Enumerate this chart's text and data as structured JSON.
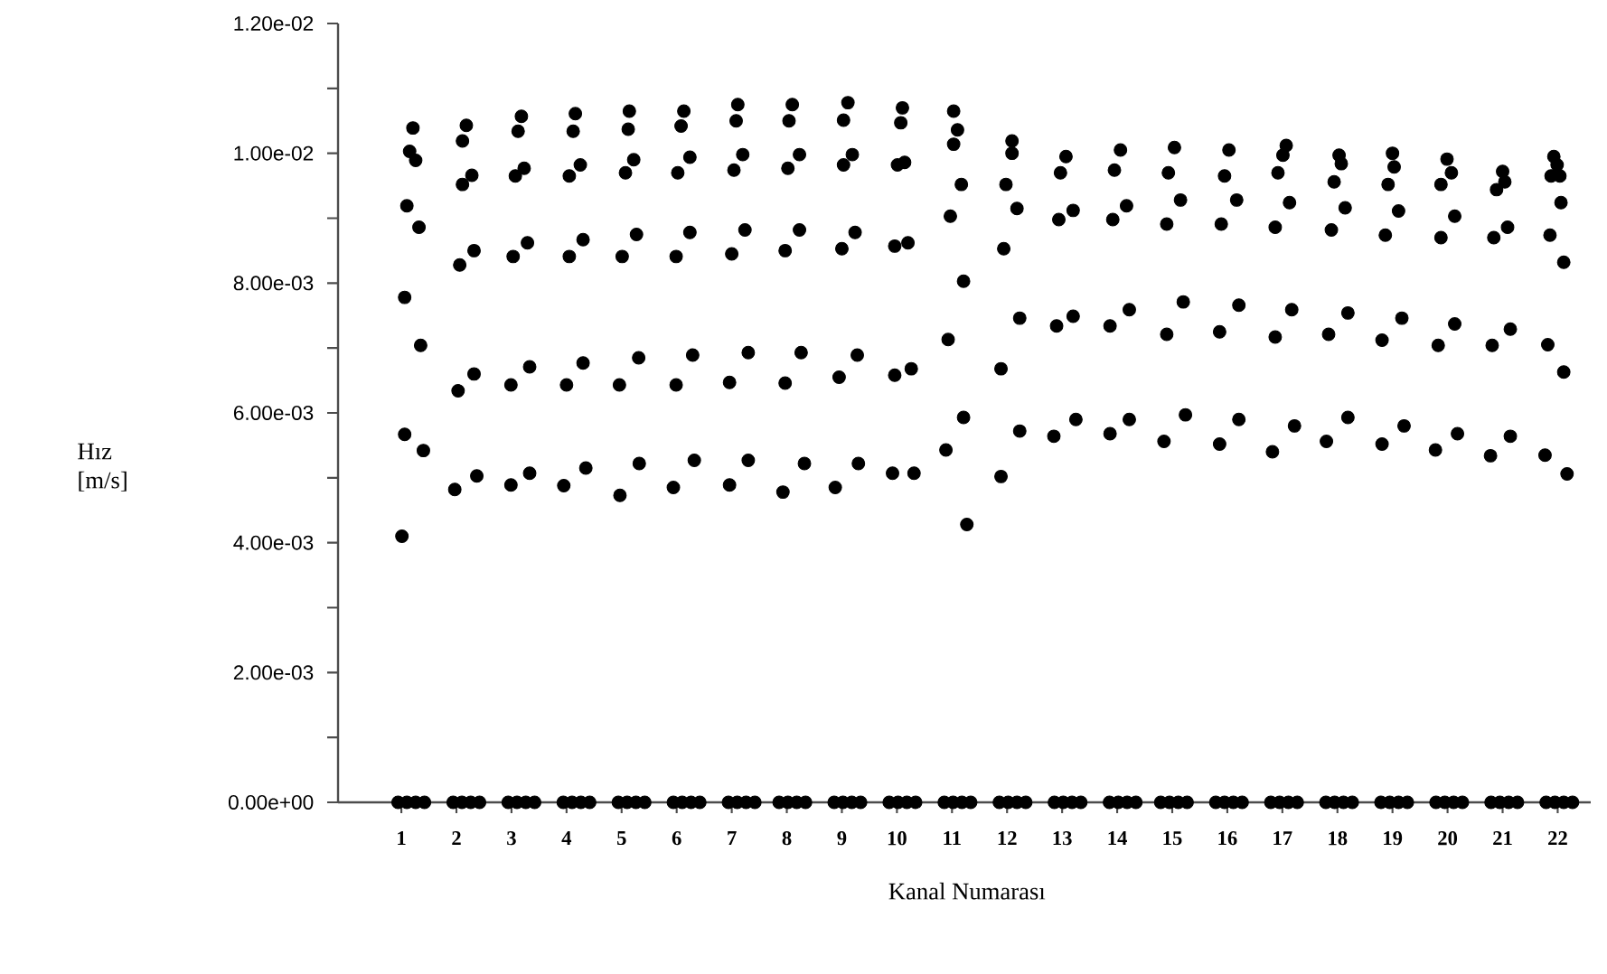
{
  "chart_data": {
    "type": "scatter",
    "xlabel": "Kanal Numarası",
    "ylabel": "Hız [m/s]",
    "color": "#000000",
    "marker": "circle",
    "xlim": [
      -0.15,
      22.6
    ],
    "ylim": [
      0,
      0.012
    ],
    "xticks": [
      1,
      2,
      3,
      4,
      5,
      6,
      7,
      8,
      9,
      10,
      11,
      12,
      13,
      14,
      15,
      16,
      17,
      18,
      19,
      20,
      21,
      22
    ],
    "yticks": [
      {
        "value": 0,
        "label": "0.00e+00"
      },
      {
        "value": 0.001,
        "label": null
      },
      {
        "value": 0.002,
        "label": "2.00e-03"
      },
      {
        "value": 0.003,
        "label": null
      },
      {
        "value": 0.004,
        "label": "4.00e-03"
      },
      {
        "value": 0.005,
        "label": null
      },
      {
        "value": 0.006,
        "label": "6.00e-03"
      },
      {
        "value": 0.007,
        "label": null
      },
      {
        "value": 0.008,
        "label": "8.00e-03"
      },
      {
        "value": 0.009,
        "label": null
      },
      {
        "value": 0.01,
        "label": "1.00e-02"
      },
      {
        "value": 0.011,
        "label": null
      },
      {
        "value": 0.012,
        "label": "1.20e-02"
      }
    ],
    "x": [
      1.21,
      1.15,
      1.26,
      1.1,
      1.32,
      1.06,
      1.35,
      1.06,
      1.4,
      1.01,
      2.18,
      2.11,
      2.28,
      2.11,
      2.32,
      2.06,
      2.32,
      2.03,
      2.37,
      1.97,
      3.18,
      3.12,
      3.23,
      3.07,
      3.29,
      3.03,
      3.33,
      2.99,
      3.33,
      2.99,
      4.16,
      4.12,
      4.25,
      4.05,
      4.3,
      4.05,
      4.3,
      4.0,
      4.35,
      3.95,
      5.14,
      5.12,
      5.22,
      5.07,
      5.27,
      5.01,
      5.31,
      4.96,
      5.32,
      4.97,
      6.13,
      6.08,
      6.24,
      6.02,
      6.24,
      5.99,
      6.29,
      5.99,
      6.32,
      5.94,
      7.11,
      7.08,
      7.2,
      7.04,
      7.24,
      7.0,
      7.3,
      6.96,
      7.3,
      6.96,
      8.1,
      8.04,
      8.23,
      8.02,
      8.23,
      7.97,
      8.26,
      7.97,
      8.32,
      7.93,
      9.11,
      9.03,
      9.19,
      9.03,
      9.24,
      9.0,
      9.28,
      8.95,
      9.3,
      8.88,
      10.1,
      10.07,
      10.14,
      10.01,
      10.2,
      9.96,
      10.26,
      9.96,
      10.31,
      9.92,
      11.03,
      11.1,
      11.03,
      11.17,
      10.97,
      11.21,
      10.93,
      11.21,
      10.89,
      11.27,
      12.09,
      12.09,
      11.98,
      12.18,
      11.94,
      12.23,
      11.89,
      12.23,
      11.89,
      13.07,
      12.97,
      13.2,
      12.94,
      13.2,
      12.9,
      13.25,
      12.85,
      14.06,
      13.95,
      14.17,
      13.92,
      14.22,
      13.87,
      14.22,
      13.87,
      15.04,
      14.93,
      15.15,
      14.9,
      15.2,
      14.9,
      15.24,
      14.85,
      16.03,
      15.95,
      16.17,
      15.89,
      16.21,
      15.86,
      16.21,
      15.86,
      17.07,
      17.01,
      16.92,
      17.13,
      16.87,
      17.17,
      16.87,
      17.22,
      16.82,
      18.03,
      18.07,
      17.94,
      18.14,
      17.89,
      18.19,
      17.84,
      18.19,
      17.8,
      19.0,
      19.03,
      18.92,
      19.11,
      18.87,
      19.17,
      18.81,
      19.21,
      18.81,
      19.99,
      20.07,
      19.88,
      20.13,
      19.88,
      20.13,
      19.83,
      20.18,
      19.78,
      21.0,
      21.04,
      20.89,
      21.09,
      20.84,
      21.14,
      20.81,
      21.14,
      20.78,
      21.93,
      21.99,
      21.88,
      22.04,
      22.06,
      21.86,
      22.11,
      21.82,
      22.11,
      21.77,
      22.17,
      0.94,
      1.1,
      1.26,
      1.42,
      1.94,
      2.1,
      2.26,
      2.42,
      2.94,
      3.1,
      3.26,
      3.42,
      3.94,
      4.1,
      4.26,
      4.42,
      4.94,
      5.1,
      5.26,
      5.42,
      5.94,
      6.1,
      6.26,
      6.42,
      6.94,
      7.1,
      7.26,
      7.42,
      7.86,
      8.02,
      8.18,
      8.34,
      8.86,
      9.02,
      9.18,
      9.34,
      9.86,
      10.02,
      10.18,
      10.34,
      10.86,
      11.02,
      11.18,
      11.34,
      11.86,
      12.02,
      12.18,
      12.34,
      12.86,
      13.02,
      13.18,
      13.34,
      13.86,
      14.02,
      14.18,
      14.34,
      14.79,
      14.95,
      15.11,
      15.27,
      15.79,
      15.95,
      16.11,
      16.27,
      16.79,
      16.95,
      17.11,
      17.27,
      17.79,
      17.95,
      18.11,
      18.27,
      18.79,
      18.95,
      19.11,
      19.27,
      19.79,
      19.95,
      20.11,
      20.27,
      20.79,
      20.95,
      21.11,
      21.27,
      21.79,
      21.95,
      22.11,
      22.27
    ],
    "values": [
      0.01039,
      0.01003,
      0.00989,
      0.00919,
      0.00886,
      0.00778,
      0.00704,
      0.00567,
      0.00542,
      0.0041,
      0.01043,
      0.01019,
      0.00966,
      0.00952,
      0.0085,
      0.00828,
      0.0066,
      0.00634,
      0.00503,
      0.00482,
      0.01057,
      0.01034,
      0.00977,
      0.00965,
      0.00862,
      0.00841,
      0.00671,
      0.00643,
      0.00507,
      0.00489,
      0.01061,
      0.01034,
      0.00982,
      0.00965,
      0.00867,
      0.00841,
      0.00677,
      0.00643,
      0.00515,
      0.00488,
      0.01065,
      0.01037,
      0.0099,
      0.0097,
      0.00875,
      0.00841,
      0.00685,
      0.00643,
      0.00522,
      0.00473,
      0.01065,
      0.01042,
      0.00994,
      0.0097,
      0.00878,
      0.00841,
      0.00689,
      0.00643,
      0.00527,
      0.00485,
      0.01075,
      0.0105,
      0.00998,
      0.00974,
      0.00882,
      0.00845,
      0.00693,
      0.00647,
      0.00527,
      0.00489,
      0.01075,
      0.0105,
      0.00998,
      0.00977,
      0.00882,
      0.0085,
      0.00693,
      0.00646,
      0.00522,
      0.00478,
      0.01078,
      0.01051,
      0.00998,
      0.00982,
      0.00878,
      0.00853,
      0.00689,
      0.00655,
      0.00522,
      0.00485,
      0.0107,
      0.01047,
      0.00986,
      0.00982,
      0.00862,
      0.00857,
      0.00668,
      0.00658,
      0.00507,
      0.00507,
      0.01065,
      0.01036,
      0.01014,
      0.00952,
      0.00903,
      0.00803,
      0.00713,
      0.00593,
      0.00543,
      0.00428,
      0.01019,
      0.01,
      0.00952,
      0.00915,
      0.00853,
      0.00746,
      0.00668,
      0.00572,
      0.00502,
      0.00995,
      0.0097,
      0.00912,
      0.00898,
      0.00749,
      0.00734,
      0.0059,
      0.00564,
      0.01005,
      0.00974,
      0.00919,
      0.00898,
      0.00759,
      0.00734,
      0.0059,
      0.00568,
      0.01009,
      0.0097,
      0.00928,
      0.00891,
      0.00771,
      0.00721,
      0.00597,
      0.00556,
      0.01005,
      0.00965,
      0.00928,
      0.00891,
      0.00766,
      0.00725,
      0.0059,
      0.00552,
      0.01012,
      0.00997,
      0.0097,
      0.00924,
      0.00886,
      0.00759,
      0.00717,
      0.0058,
      0.0054,
      0.00997,
      0.00984,
      0.00956,
      0.00916,
      0.00882,
      0.00754,
      0.00721,
      0.00593,
      0.00556,
      0.01,
      0.00979,
      0.00952,
      0.00911,
      0.00874,
      0.00746,
      0.00712,
      0.0058,
      0.00552,
      0.00991,
      0.0097,
      0.00952,
      0.00903,
      0.0087,
      0.00737,
      0.00704,
      0.00568,
      0.00543,
      0.00972,
      0.00956,
      0.00944,
      0.00886,
      0.0087,
      0.00729,
      0.00704,
      0.00564,
      0.00534,
      0.00995,
      0.00982,
      0.00965,
      0.00965,
      0.00924,
      0.00874,
      0.00832,
      0.00705,
      0.00663,
      0.00535,
      0.00506,
      0,
      0,
      0,
      0,
      0,
      0,
      0,
      0,
      0,
      0,
      0,
      0,
      0,
      0,
      0,
      0,
      0,
      0,
      0,
      0,
      0,
      0,
      0,
      0,
      0,
      0,
      0,
      0,
      0,
      0,
      0,
      0,
      0,
      0,
      0,
      0,
      0,
      0,
      0,
      0,
      0,
      0,
      0,
      0,
      0,
      0,
      0,
      0,
      0,
      0,
      0,
      0,
      0,
      0,
      0,
      0,
      0,
      0,
      0,
      0,
      0,
      0,
      0,
      0,
      0,
      0,
      0,
      0,
      0,
      0,
      0,
      0,
      0,
      0,
      0,
      0,
      0,
      0,
      0,
      0,
      0,
      0,
      0,
      0,
      0,
      0,
      0,
      0
    ]
  }
}
